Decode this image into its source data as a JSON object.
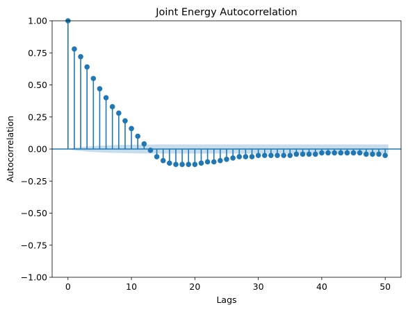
{
  "chart_data": {
    "type": "stem",
    "title": "Joint Energy Autocorrelation",
    "xlabel": "Lags",
    "ylabel": "Autocorrelation",
    "xlim": [
      -2.5,
      52.5
    ],
    "ylim": [
      -1.0,
      1.0
    ],
    "xticks": [
      0,
      10,
      20,
      30,
      40,
      50
    ],
    "yticks": [
      -1.0,
      -0.75,
      -0.5,
      -0.25,
      0.0,
      0.25,
      0.5,
      0.75,
      1.0
    ],
    "xtick_labels": [
      "0",
      "10",
      "20",
      "30",
      "40",
      "50"
    ],
    "ytick_labels": [
      "−1.00",
      "−0.75",
      "−0.50",
      "−0.25",
      "0.00",
      "0.25",
      "0.50",
      "0.75",
      "1.00"
    ],
    "grid": false,
    "color": "#1f77b4",
    "band_color": "#1f77b4",
    "lags": [
      0,
      1,
      2,
      3,
      4,
      5,
      6,
      7,
      8,
      9,
      10,
      11,
      12,
      13,
      14,
      15,
      16,
      17,
      18,
      19,
      20,
      21,
      22,
      23,
      24,
      25,
      26,
      27,
      28,
      29,
      30,
      31,
      32,
      33,
      34,
      35,
      36,
      37,
      38,
      39,
      40,
      41,
      42,
      43,
      44,
      45,
      46,
      47,
      48,
      49,
      50
    ],
    "acf": [
      1.0,
      0.78,
      0.72,
      0.64,
      0.55,
      0.47,
      0.4,
      0.33,
      0.28,
      0.22,
      0.16,
      0.1,
      0.04,
      -0.01,
      -0.06,
      -0.09,
      -0.11,
      -0.12,
      -0.12,
      -0.12,
      -0.12,
      -0.11,
      -0.1,
      -0.1,
      -0.09,
      -0.08,
      -0.07,
      -0.06,
      -0.06,
      -0.06,
      -0.05,
      -0.05,
      -0.05,
      -0.05,
      -0.05,
      -0.05,
      -0.04,
      -0.04,
      -0.04,
      -0.04,
      -0.03,
      -0.03,
      -0.03,
      -0.03,
      -0.03,
      -0.03,
      -0.03,
      -0.04,
      -0.04,
      -0.04,
      -0.05
    ],
    "confidence_band": [
      0.0,
      0.01,
      0.015,
      0.02,
      0.023,
      0.026,
      0.028,
      0.03,
      0.031,
      0.032,
      0.033,
      0.034,
      0.035,
      0.035,
      0.036,
      0.036,
      0.036,
      0.036,
      0.036,
      0.036,
      0.036,
      0.036,
      0.036,
      0.036,
      0.036,
      0.036,
      0.036,
      0.036,
      0.036,
      0.036,
      0.036,
      0.036,
      0.036,
      0.036,
      0.036,
      0.036,
      0.036,
      0.036,
      0.036,
      0.036,
      0.036,
      0.036,
      0.036,
      0.036,
      0.036,
      0.036,
      0.036,
      0.036,
      0.036,
      0.036,
      0.036
    ]
  }
}
